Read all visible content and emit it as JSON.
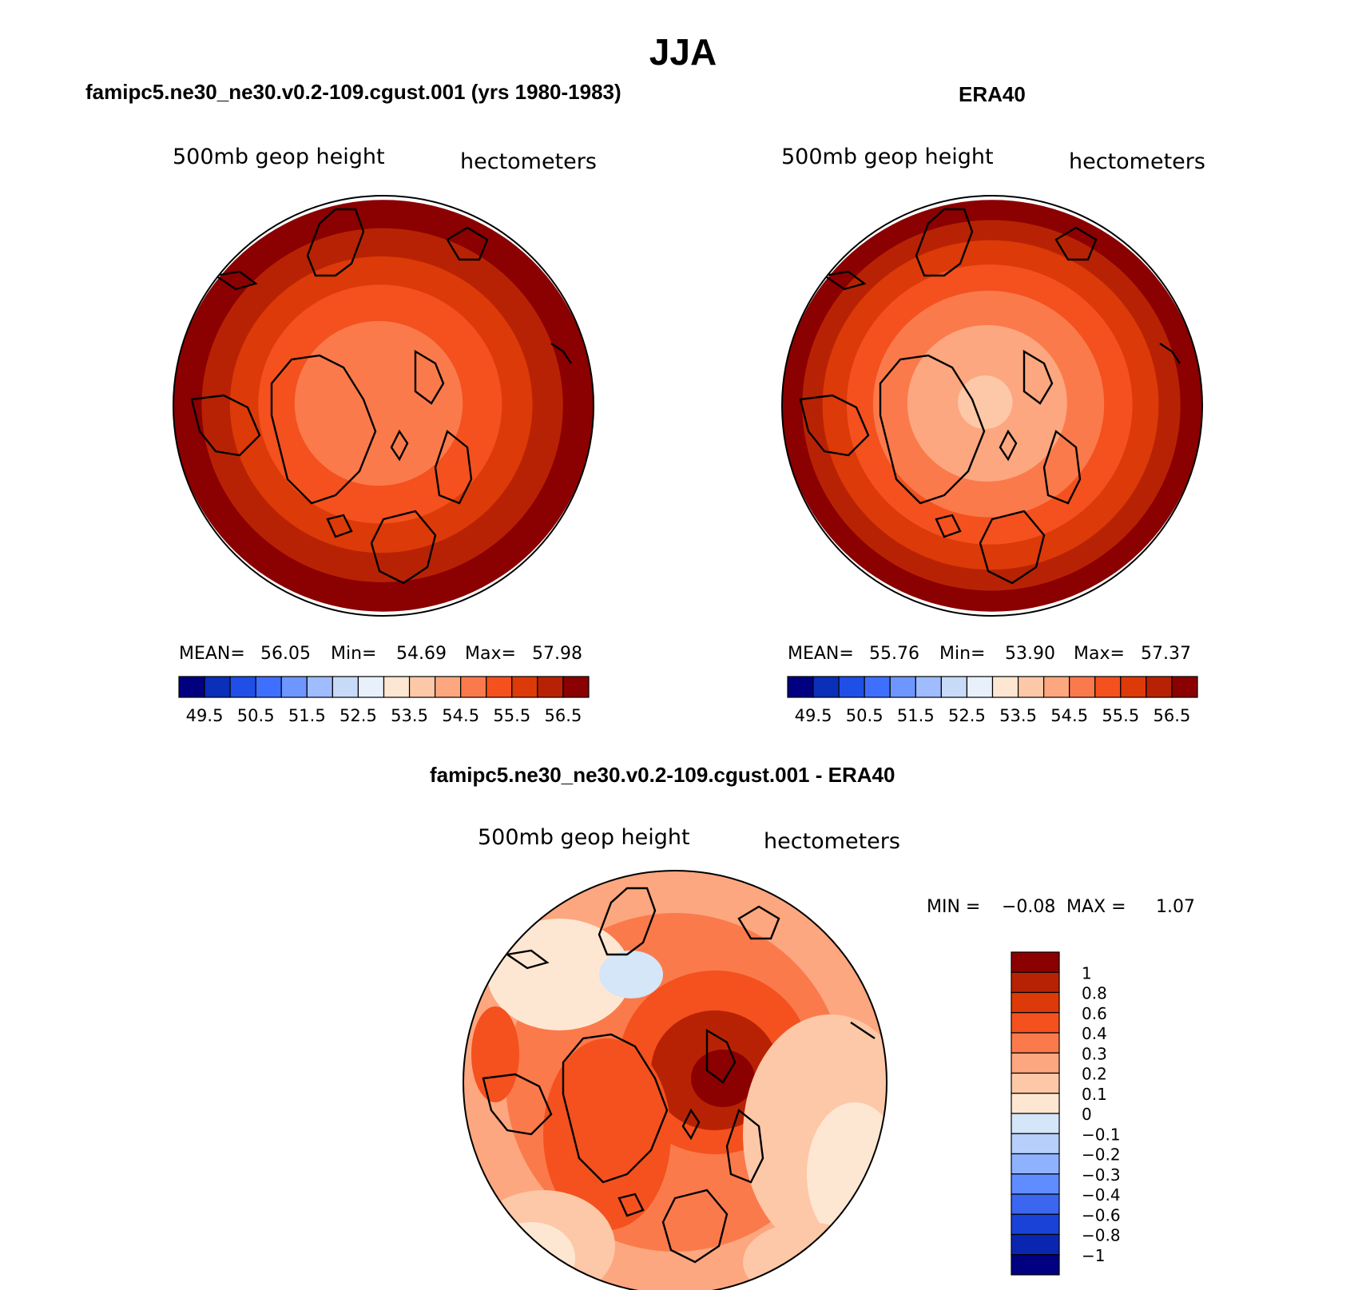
{
  "figure_title": "JJA",
  "chart_data": [
    {
      "type": "heatmap",
      "projection": "north polar stereographic",
      "title": "famipc5.ne30_ne30.v0.2-109.cgust.001 (yrs 1980-1983)",
      "left_label": "500mb geop height",
      "right_label": "hectometers",
      "stats": {
        "mean_label": "MEAN=",
        "mean": "56.05",
        "min_label": "Min=",
        "min": "54.69",
        "max_label": "Max=",
        "max": "57.98"
      },
      "levels": [
        "49.5",
        "50.5",
        "51.5",
        "52.5",
        "53.5",
        "54.5",
        "55.5",
        "56.5"
      ],
      "colors": [
        "#000080",
        "#0a2fb8",
        "#1f4fe6",
        "#3e6fff",
        "#6e96ff",
        "#9fbcff",
        "#c7daf7",
        "#e8f0fb",
        "#fee7d2",
        "#fdc8a8",
        "#fca77f",
        "#fb7a4c",
        "#f4511e",
        "#dc3a08",
        "#b82204",
        "#8b0000"
      ],
      "field": [
        {
          "r": 1.0,
          "c": "#8b0000"
        },
        {
          "r": 0.86,
          "c": "#b82204"
        },
        {
          "r": 0.72,
          "c": "#dc3a08"
        },
        {
          "r": 0.58,
          "c": "#f4511e"
        },
        {
          "r": 0.4,
          "c": "#fb7a4c"
        }
      ]
    },
    {
      "type": "heatmap",
      "projection": "north polar stereographic",
      "title": "ERA40",
      "left_label": "500mb geop height",
      "right_label": "hectometers",
      "stats": {
        "mean_label": "MEAN=",
        "mean": "55.76",
        "min_label": "Min=",
        "min": "53.90",
        "max_label": "Max=",
        "max": "57.37"
      },
      "levels": [
        "49.5",
        "50.5",
        "51.5",
        "52.5",
        "53.5",
        "54.5",
        "55.5",
        "56.5"
      ],
      "colors": [
        "#000080",
        "#0a2fb8",
        "#1f4fe6",
        "#3e6fff",
        "#6e96ff",
        "#9fbcff",
        "#c7daf7",
        "#e8f0fb",
        "#fee7d2",
        "#fdc8a8",
        "#fca77f",
        "#fb7a4c",
        "#f4511e",
        "#dc3a08",
        "#b82204",
        "#8b0000"
      ],
      "field": [
        {
          "r": 1.0,
          "c": "#8b0000"
        },
        {
          "r": 0.9,
          "c": "#b82204"
        },
        {
          "r": 0.8,
          "c": "#dc3a08"
        },
        {
          "r": 0.68,
          "c": "#f4511e"
        },
        {
          "r": 0.55,
          "c": "#fb7a4c"
        },
        {
          "r": 0.38,
          "c": "#fca77f"
        },
        {
          "r": 0.13,
          "c": "#fdc8a8"
        }
      ]
    },
    {
      "type": "heatmap",
      "projection": "north polar stereographic",
      "title": "famipc5.ne30_ne30.v0.2-109.cgust.001 - ERA40",
      "left_label": "500mb geop height",
      "right_label": "hectometers",
      "stats": {
        "min_label": "MIN =",
        "min": "−0.08",
        "max_label": "MAX =",
        "max": "1.07"
      },
      "levels": [
        "1",
        "0.8",
        "0.6",
        "0.4",
        "0.3",
        "0.2",
        "0.1",
        "0",
        "−0.1",
        "−0.2",
        "−0.3",
        "−0.4",
        "−0.6",
        "−0.8",
        "−1"
      ],
      "colors": [
        "#8b0000",
        "#b82204",
        "#dc3a08",
        "#f4511e",
        "#fb7a4c",
        "#fca77f",
        "#fdc8a8",
        "#fee7d2",
        "#d4e6f8",
        "#b6cffb",
        "#8fb2ff",
        "#5f8cff",
        "#3a66f0",
        "#1a42d6",
        "#0a26b0",
        "#000080"
      ],
      "field": [
        {
          "r": 1.0,
          "c": "#fca77f"
        },
        {
          "r": 0.8,
          "c": "#fb7a4c"
        }
      ]
    }
  ]
}
